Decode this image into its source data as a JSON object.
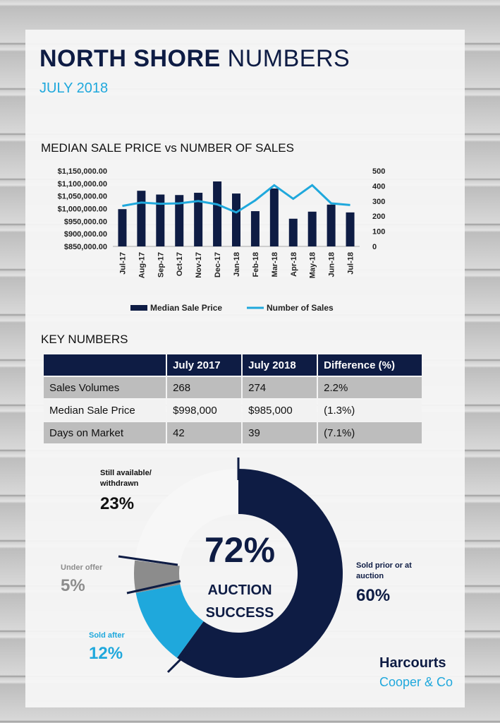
{
  "header": {
    "title_bold": "NORTH SHORE",
    "title_rest": " NUMBERS",
    "subtitle": "JULY 2018"
  },
  "chart_section_title": "MEDIAN SALE PRICE vs NUMBER OF SALES",
  "chart_data": {
    "type": "bar",
    "categories": [
      "Jul-17",
      "Aug-17",
      "Sep-17",
      "Oct-17",
      "Nov-17",
      "Dec-17",
      "Jan-18",
      "Feb-18",
      "Mar-18",
      "Apr-18",
      "May-18",
      "Jun-18",
      "Jul-18"
    ],
    "series": [
      {
        "name": "Median Sale Price",
        "type": "bar",
        "axis": "left",
        "values": [
          998000,
          1071000,
          1056000,
          1054000,
          1063000,
          1108000,
          1060000,
          990000,
          1080000,
          960000,
          988000,
          1016000,
          985000
        ]
      },
      {
        "name": "Number of Sales",
        "type": "line",
        "axis": "right",
        "values": [
          268,
          290,
          282,
          285,
          300,
          278,
          225,
          305,
          405,
          315,
          405,
          285,
          274
        ]
      }
    ],
    "ylim": [
      850000,
      1150000
    ],
    "y_ticks": [
      "$1,150,000.00",
      "$1,100,000.00",
      "$1,050,000.00",
      "$1,000,000.00",
      "$950,000.00",
      "$900,000.00",
      "$850,000.00"
    ],
    "y2lim": [
      0,
      500
    ],
    "y2_ticks": [
      "500",
      "400",
      "300",
      "200",
      "100",
      "0"
    ],
    "legend_position": "bottom",
    "colors": {
      "bar": "#0e1c44",
      "line": "#1fa8dc"
    }
  },
  "key_numbers": {
    "title": "KEY NUMBERS",
    "headers": [
      "",
      "July 2017",
      "July 2018",
      "Difference (%)"
    ],
    "rows": [
      [
        "Sales Volumes",
        "268",
        "274",
        "2.2%"
      ],
      [
        "Median Sale Price",
        "$998,000",
        "$985,000",
        "(1.3%)"
      ],
      [
        "Days on Market",
        "42",
        "39",
        "(7.1%)"
      ]
    ]
  },
  "auction": {
    "center_pct": "72%",
    "center_line1": "AUCTION",
    "center_line2": "SUCCESS",
    "segments": [
      {
        "label": "Sold prior or at auction",
        "pct": "60%",
        "value": 60,
        "color": "#0e1c44"
      },
      {
        "label": "Sold after",
        "pct": "12%",
        "value": 12,
        "color": "#1fa8dc"
      },
      {
        "label": "Under offer",
        "pct": "5%",
        "value": 5,
        "color": "#8c8c8c"
      },
      {
        "label": "Still available/ withdrawn",
        "pct": "23%",
        "value": 23,
        "color": "#f7f7f7"
      }
    ],
    "labels": {
      "sold_prior_l1": "Sold prior or at",
      "sold_prior_l2": "auction",
      "sold_after": "Sold after",
      "under_offer": "Under offer",
      "still_l1": "Still available/",
      "still_l2": "withdrawn"
    }
  },
  "brand": {
    "name": "Harcourts",
    "sub": "Cooper & Co"
  }
}
